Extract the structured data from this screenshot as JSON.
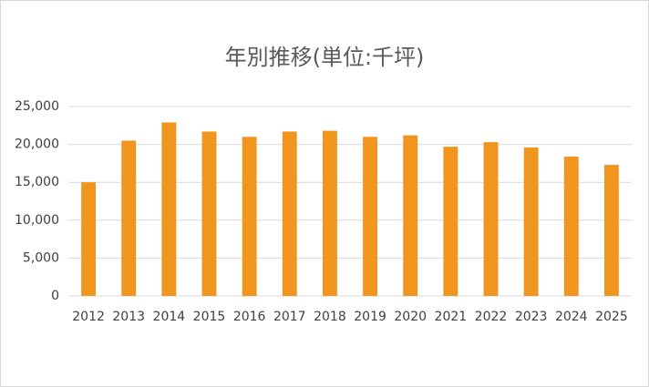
{
  "chart_data": {
    "type": "bar",
    "title": "年別推移(単位:千坪)",
    "categories": [
      "2012",
      "2013",
      "2014",
      "2015",
      "2016",
      "2017",
      "2018",
      "2019",
      "2020",
      "2021",
      "2022",
      "2023",
      "2024",
      "2025"
    ],
    "values": [
      15000,
      20500,
      22900,
      21700,
      21000,
      21700,
      21800,
      21000,
      21200,
      19700,
      20300,
      19600,
      18400,
      17300
    ],
    "color": "#f0961e",
    "ylim": [
      0,
      25000
    ],
    "yticks": [
      0,
      {
        "value": 5000,
        "label": "5,000"
      },
      {
        "value": 10000,
        "label": "10,000"
      },
      {
        "value": 15000,
        "label": "15,000"
      },
      {
        "value": 20000,
        "label": "20,000"
      },
      {
        "value": 25000,
        "label": "25,000"
      }
    ],
    "grid": true
  }
}
